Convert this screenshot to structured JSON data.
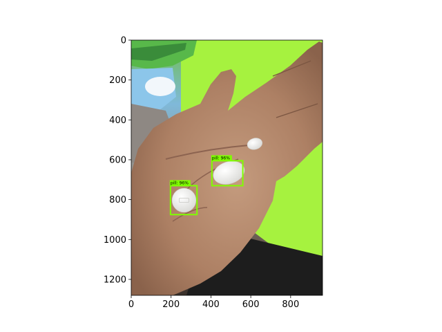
{
  "axes": {
    "x_ticks": [
      0,
      200,
      400,
      600,
      800
    ],
    "y_ticks": [
      0,
      200,
      400,
      600,
      800,
      1000,
      1200
    ],
    "x_range": [
      0,
      960
    ],
    "y_range": [
      1280,
      0
    ]
  },
  "detections": [
    {
      "label": "pill: 96%",
      "color": "#7fff00",
      "x1": 197,
      "y1": 730,
      "x2": 330,
      "y2": 875
    },
    {
      "label": "pill: 96%",
      "color": "#7fff00",
      "x1": 405,
      "y1": 605,
      "x2": 560,
      "y2": 730
    }
  ],
  "pills": [
    {
      "shape": "round",
      "cx": 265,
      "cy": 803,
      "r": 60
    },
    {
      "shape": "oval",
      "cx": 490,
      "cy": 665,
      "rx": 80,
      "ry": 55,
      "rotate": -18
    },
    {
      "shape": "oval",
      "cx": 620,
      "cy": 520,
      "rx": 38,
      "ry": 28,
      "rotate": -15
    }
  ],
  "colors": {
    "box": "#7fff00",
    "skin": "#b08468",
    "skin_dark": "#7d5a46",
    "table": "#a7f540",
    "floor": "#1c1c1c",
    "pill": "#f4f4f2"
  }
}
